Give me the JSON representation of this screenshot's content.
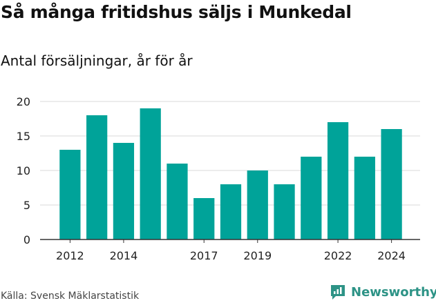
{
  "title": "Så många fritidshus säljs i Munkedal",
  "subtitle": "Antal försäljningar, år för år",
  "source": "Källa: Svensk Mäklarstatistik",
  "brand": "Newsworthy",
  "colors": {
    "bar": "#00a399",
    "grid": "#d9d9d9",
    "axis": "#333333",
    "brand": "#2d9386"
  },
  "chart_data": {
    "type": "bar",
    "categories": [
      "2012",
      "2013",
      "2014",
      "2015",
      "2016",
      "2017",
      "2018",
      "2019",
      "2020",
      "2021",
      "2022",
      "2023",
      "2024"
    ],
    "values": [
      13,
      18,
      14,
      19,
      11,
      6,
      8,
      10,
      8,
      12,
      17,
      12,
      16
    ],
    "x_tick_labels": [
      "2012",
      "2014",
      "2017",
      "2019",
      "2022",
      "2024"
    ],
    "y_ticks": [
      0,
      5,
      10,
      15,
      20
    ],
    "ylim": [
      0,
      20
    ],
    "grid": true,
    "xlabel": "",
    "ylabel": ""
  }
}
